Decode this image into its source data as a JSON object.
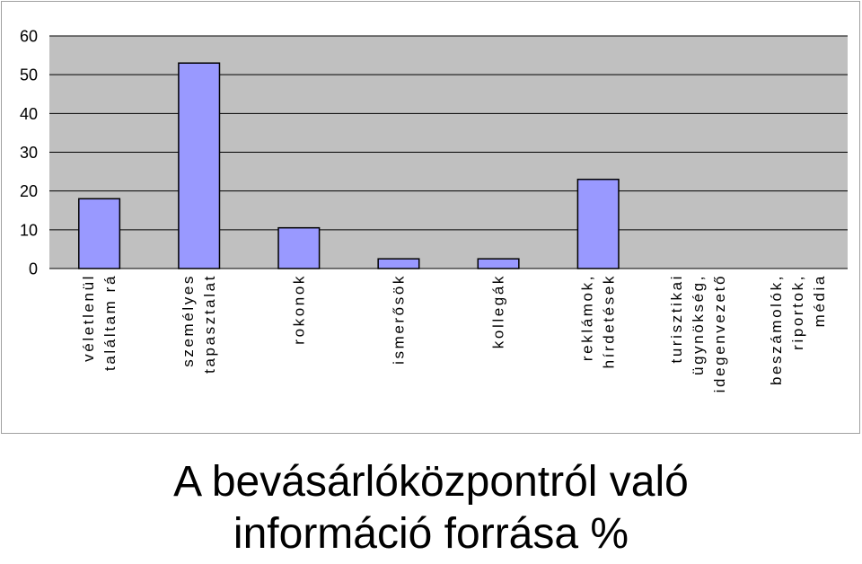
{
  "chart_data": {
    "type": "bar",
    "title_lines": [
      "A bevásárlóközpontról való",
      "információ forrása %"
    ],
    "categories": [
      [
        "véletlenül",
        "találtam rá"
      ],
      [
        "személyes",
        "tapasztalat"
      ],
      [
        "rokonok"
      ],
      [
        "ismerősök"
      ],
      [
        "kollegák"
      ],
      [
        "reklámok,",
        "hírdetések"
      ],
      [
        "turisztikai",
        "ügynökség,",
        "idegenvezető"
      ],
      [
        "beszámolók,",
        "riportok,",
        "média"
      ]
    ],
    "values": [
      18,
      53,
      10.5,
      2.5,
      2.5,
      23,
      0,
      0
    ],
    "ylim": [
      0,
      60
    ],
    "yticks": [
      0,
      10,
      20,
      30,
      40,
      50,
      60
    ],
    "grid": true,
    "colors": {
      "bar_fill": "#9999ff",
      "bar_stroke": "#000000",
      "plot_background": "#c0c0c0",
      "gridline": "#000000"
    }
  }
}
